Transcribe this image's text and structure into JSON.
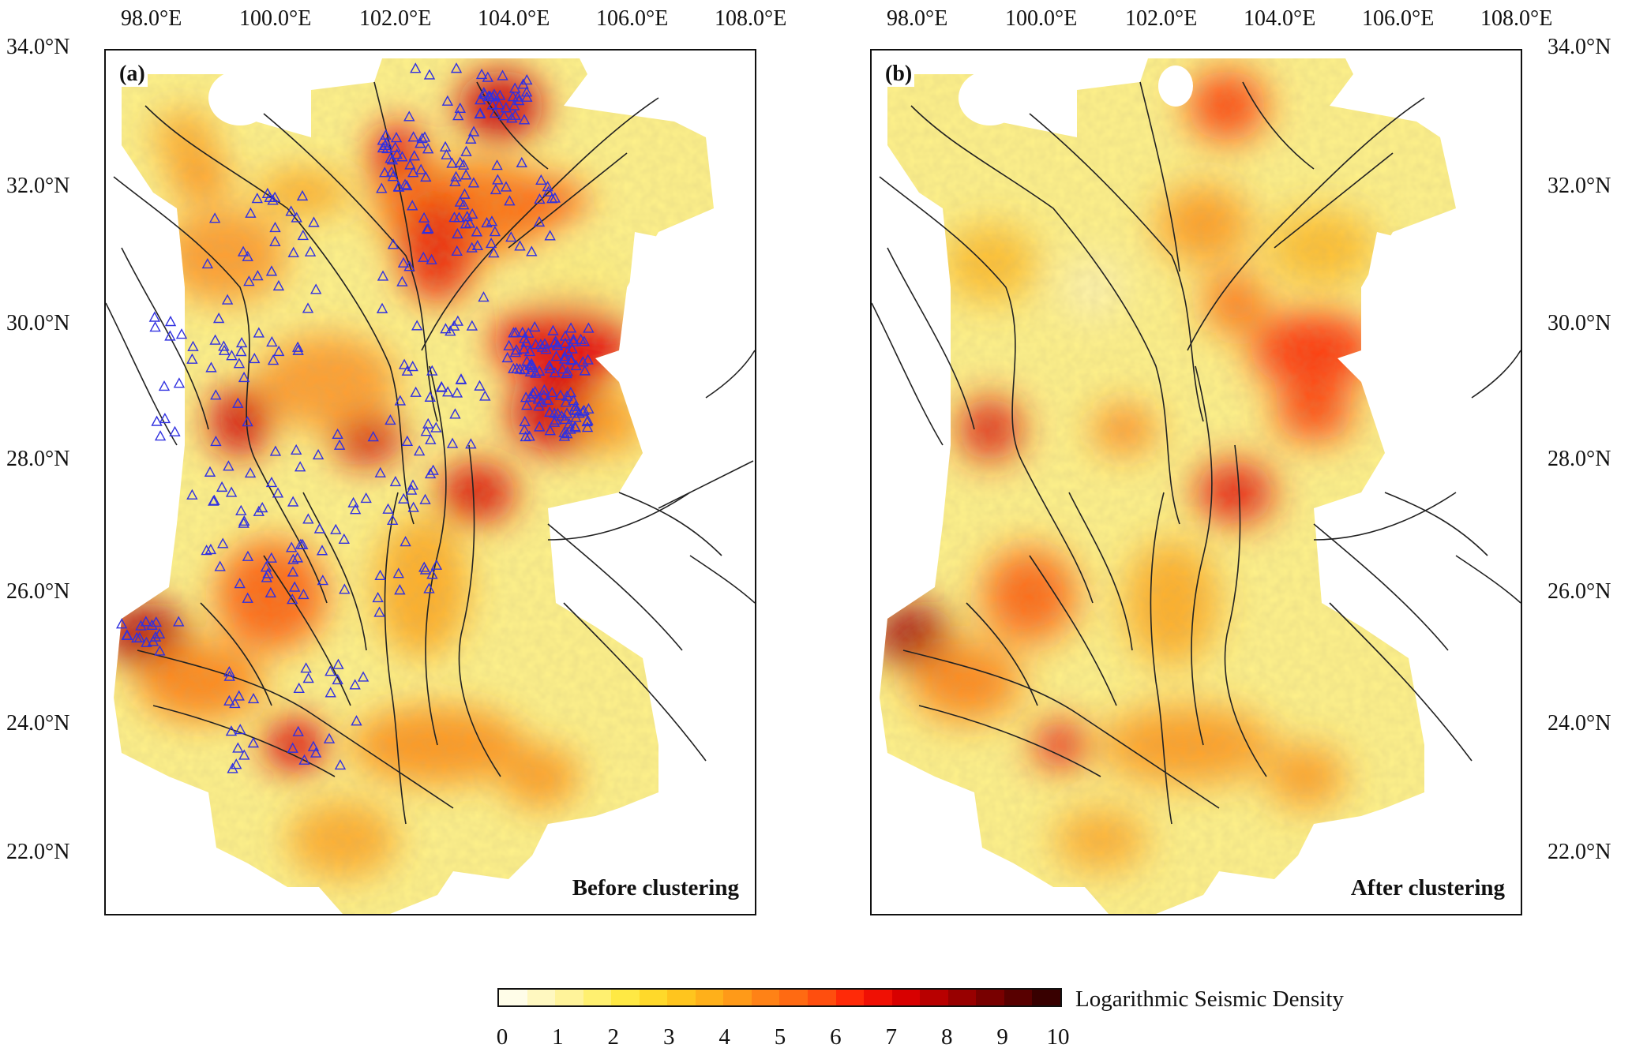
{
  "map": {
    "lon_ticks": [
      "98.0°E",
      "100.0°E",
      "102.0°E",
      "104.0°E",
      "106.0°E",
      "108.0°E"
    ],
    "lat_ticks": [
      "34.0°N",
      "32.0°N",
      "30.0°N",
      "28.0°N",
      "26.0°N",
      "24.0°N",
      "22.0°N"
    ],
    "panel_a": {
      "tag": "(a)",
      "caption": "Before clustering"
    },
    "panel_b": {
      "tag": "(b)",
      "caption": "After clustering"
    },
    "colorbar": {
      "title": "Logarithmic Seismic Density",
      "ticks": [
        "0",
        "1",
        "2",
        "3",
        "4",
        "5",
        "6",
        "7",
        "8",
        "9",
        "10"
      ],
      "colors": [
        "#fffde8",
        "#fff8c0",
        "#fff39a",
        "#fff070",
        "#ffe944",
        "#ffd92a",
        "#ffc51e",
        "#ffb01a",
        "#ff9a18",
        "#ff8216",
        "#ff6a12",
        "#ff4e0e",
        "#ff2a08",
        "#f01004",
        "#d80000",
        "#b80000",
        "#980000",
        "#780000",
        "#580000",
        "#380000"
      ]
    },
    "stations_shown_in": "panel_a",
    "marker_color": "#3030e0",
    "fault_color": "#222222"
  }
}
